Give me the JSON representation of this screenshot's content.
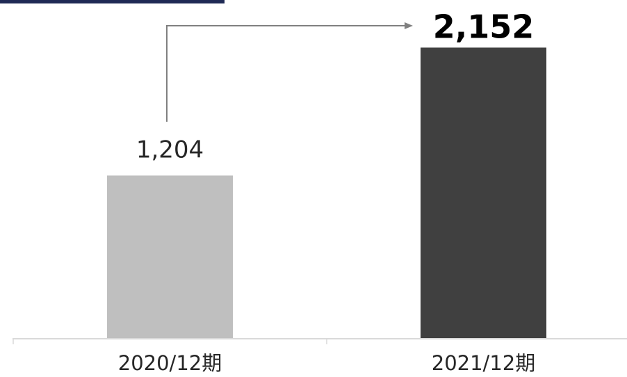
{
  "colors": {
    "header_accent": "#1F2A55",
    "axis": "#D9D9D9",
    "arrow": "#808080",
    "text": "#262626",
    "highlight_text": "#000000"
  },
  "chart_data": {
    "type": "bar",
    "categories": [
      "2020/12期",
      "2021/12期"
    ],
    "values": [
      1204,
      2152
    ],
    "value_labels": [
      "1,204",
      "2,152"
    ],
    "bar_colors": [
      "#BFBFBF",
      "#404040"
    ],
    "highlight_index": 1,
    "ylim": [
      0,
      2350
    ],
    "grid": false,
    "legend": "none",
    "annotation": "arrow from first bar label to second bar label"
  }
}
